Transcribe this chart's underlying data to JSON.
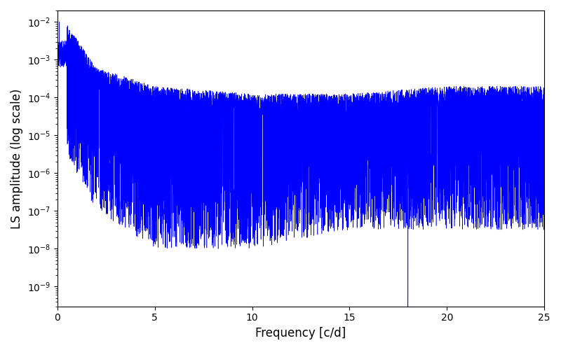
{
  "xlabel": "Frequency [c/d]",
  "ylabel": "LS amplitude (log scale)",
  "xlim": [
    0,
    25
  ],
  "ylim": [
    3e-10,
    0.02
  ],
  "line_color": "#0000ff",
  "line_width": 0.4,
  "figsize": [
    8.0,
    5.0
  ],
  "dpi": 100,
  "seed": 123,
  "n_points": 8000,
  "deep_spike_freq": 18.0,
  "deep_spike_log": -9.55,
  "top_envelope_log": [
    -2.0,
    -3.5,
    -4.0,
    -4.2,
    -4.2,
    -4.0,
    -4.0
  ],
  "bottom_envelope_log": [
    -3.5,
    -5.5,
    -6.5,
    -6.5,
    -6.0,
    -6.0,
    -6.0
  ],
  "env_freqs": [
    0,
    2,
    5,
    10,
    15,
    20,
    25
  ]
}
